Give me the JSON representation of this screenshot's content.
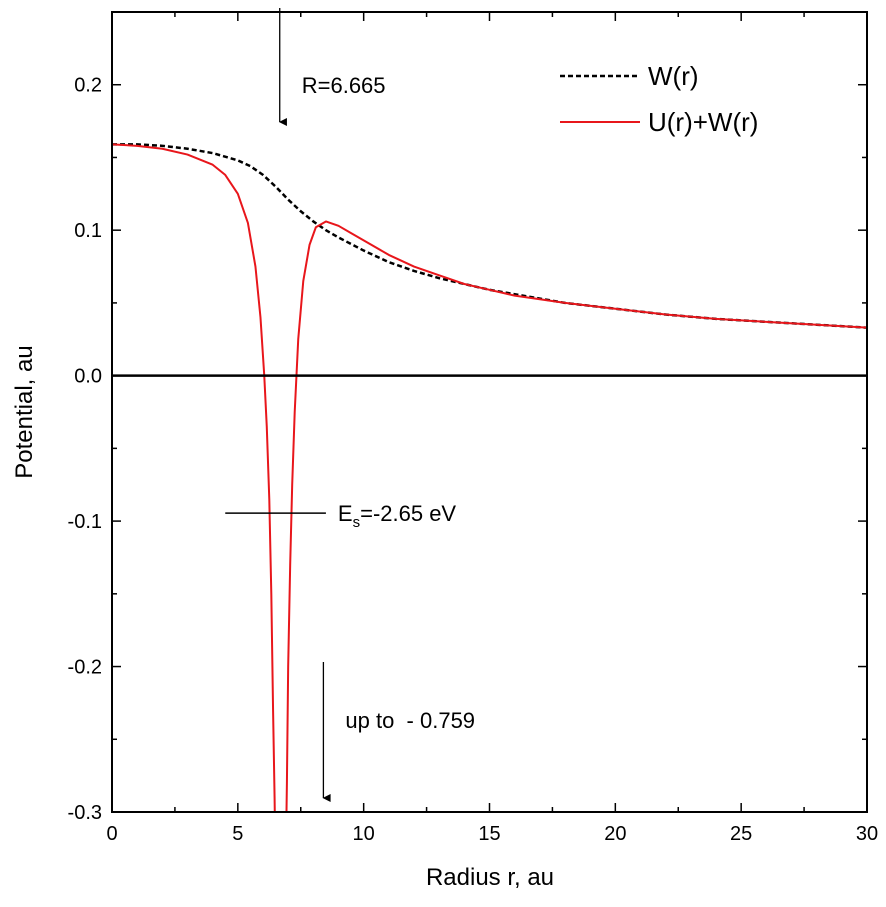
{
  "chart_data": {
    "type": "line",
    "xlabel": "Radius r, au",
    "ylabel": "Potential, au",
    "xlim": [
      0,
      30
    ],
    "ylim": [
      -0.3,
      0.25
    ],
    "grid": false,
    "legend_position": "top-right",
    "x_ticks": [
      0,
      5,
      10,
      15,
      20,
      25,
      30
    ],
    "x_tick_labels": [
      "0",
      "5",
      "10",
      "15",
      "20",
      "25",
      "30"
    ],
    "y_ticks": [
      -0.3,
      -0.2,
      -0.1,
      0.0,
      0.1,
      0.2
    ],
    "y_tick_labels": [
      "-0.3",
      "-0.2",
      "-0.1",
      "0.0",
      "0.1",
      "0.2"
    ],
    "series": [
      {
        "name": "W(r)",
        "style": "dashed",
        "color": "#000000",
        "x": [
          0,
          1,
          2,
          3,
          4,
          5,
          5.5,
          6,
          6.5,
          7,
          7.5,
          8,
          8.5,
          9,
          10,
          11,
          12,
          13,
          14,
          15,
          16,
          18,
          20,
          22,
          24,
          26,
          28,
          30
        ],
        "y": [
          0.159,
          0.159,
          0.158,
          0.156,
          0.153,
          0.148,
          0.144,
          0.138,
          0.13,
          0.121,
          0.113,
          0.106,
          0.1,
          0.095,
          0.086,
          0.078,
          0.072,
          0.067,
          0.063,
          0.059,
          0.056,
          0.05,
          0.046,
          0.042,
          0.039,
          0.037,
          0.035,
          0.033
        ]
      },
      {
        "name": "U(r)+W(r)",
        "style": "solid",
        "color": "#e8161b",
        "x": [
          0,
          1,
          2,
          3,
          4,
          4.5,
          5,
          5.4,
          5.7,
          5.9,
          6.05,
          6.15,
          6.25,
          6.33,
          6.4,
          6.46,
          6.5,
          6.9,
          6.95,
          7.0,
          7.08,
          7.16,
          7.26,
          7.4,
          7.6,
          7.85,
          8.1,
          8.5,
          9,
          9.5,
          10,
          11,
          12,
          13,
          14,
          15,
          16,
          18,
          20,
          22,
          24,
          26,
          28,
          30
        ],
        "y": [
          0.159,
          0.158,
          0.156,
          0.152,
          0.145,
          0.138,
          0.125,
          0.105,
          0.075,
          0.04,
          0.0,
          -0.035,
          -0.085,
          -0.15,
          -0.23,
          -0.29,
          -0.34,
          -0.34,
          -0.28,
          -0.2,
          -0.13,
          -0.075,
          -0.025,
          0.025,
          0.065,
          0.09,
          0.102,
          0.106,
          0.103,
          0.098,
          0.093,
          0.083,
          0.075,
          0.069,
          0.063,
          0.059,
          0.055,
          0.05,
          0.046,
          0.042,
          0.039,
          0.037,
          0.035,
          0.033
        ]
      }
    ],
    "reference_lines": [
      {
        "type": "horizontal",
        "y": 0.0,
        "color": "#000000"
      }
    ],
    "annotations": [
      {
        "text": "R=6.665",
        "x_data": 6.665,
        "kind": "down-arrow"
      },
      {
        "text_main": "E",
        "text_sub": "s",
        "text_rest": "=-2.65 eV",
        "y_data": -0.0945,
        "x_from": 4.5,
        "x_to": 8.5,
        "kind": "level-line"
      },
      {
        "text": "up to  - 0.759",
        "x_data": 8.4,
        "kind": "down-arrow"
      }
    ]
  }
}
